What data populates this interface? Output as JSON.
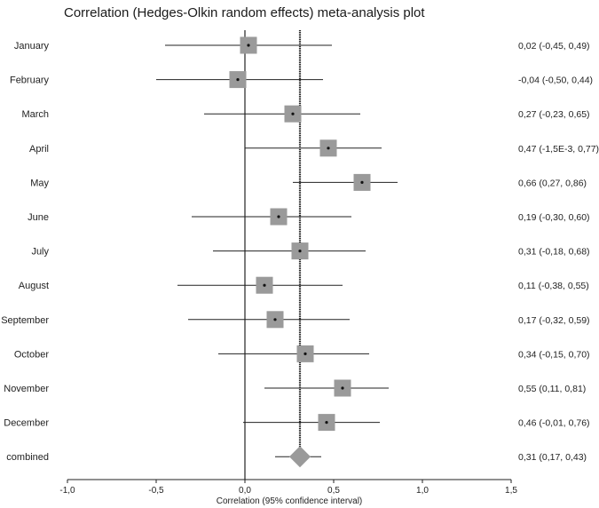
{
  "chart_data": {
    "type": "forest",
    "title": "Correlation (Hedges-Olkin random effects) meta-analysis plot",
    "xlabel": "Correlation (95% confidence interval)",
    "xlim": [
      -1.0,
      1.5
    ],
    "xticks": [
      -1.0,
      -0.5,
      0.0,
      0.5,
      1.0,
      1.5
    ],
    "xtick_labels": [
      "-1,0",
      "-0,5",
      "0,0",
      "0,5",
      "1,0",
      "1,5"
    ],
    "reference_line": 0.0,
    "pooled_line": 0.31,
    "studies": [
      {
        "label": "January",
        "estimate": 0.02,
        "lower": -0.45,
        "upper": 0.49,
        "ci_text": "0,02 (-0,45, 0,49)"
      },
      {
        "label": "February",
        "estimate": -0.04,
        "lower": -0.5,
        "upper": 0.44,
        "ci_text": "-0,04 (-0,50, 0,44)"
      },
      {
        "label": "March",
        "estimate": 0.27,
        "lower": -0.23,
        "upper": 0.65,
        "ci_text": "0,27 (-0,23, 0,65)"
      },
      {
        "label": "April",
        "estimate": 0.47,
        "lower": -0.0015,
        "upper": 0.77,
        "ci_text": "0,47 (-1,5E-3, 0,77)"
      },
      {
        "label": "May",
        "estimate": 0.66,
        "lower": 0.27,
        "upper": 0.86,
        "ci_text": "0,66 (0,27, 0,86)"
      },
      {
        "label": "June",
        "estimate": 0.19,
        "lower": -0.3,
        "upper": 0.6,
        "ci_text": "0,19 (-0,30, 0,60)"
      },
      {
        "label": "July",
        "estimate": 0.31,
        "lower": -0.18,
        "upper": 0.68,
        "ci_text": "0,31 (-0,18, 0,68)"
      },
      {
        "label": "August",
        "estimate": 0.11,
        "lower": -0.38,
        "upper": 0.55,
        "ci_text": "0,11 (-0,38, 0,55)"
      },
      {
        "label": "September",
        "estimate": 0.17,
        "lower": -0.32,
        "upper": 0.59,
        "ci_text": "0,17 (-0,32, 0,59)"
      },
      {
        "label": "October",
        "estimate": 0.34,
        "lower": -0.15,
        "upper": 0.7,
        "ci_text": "0,34 (-0,15, 0,70)"
      },
      {
        "label": "November",
        "estimate": 0.55,
        "lower": 0.11,
        "upper": 0.81,
        "ci_text": "0,55 (0,11, 0,81)"
      },
      {
        "label": "December",
        "estimate": 0.46,
        "lower": -0.01,
        "upper": 0.76,
        "ci_text": "0,46 (-0,01, 0,76)"
      }
    ],
    "combined": {
      "label": "combined",
      "estimate": 0.31,
      "lower": 0.17,
      "upper": 0.43,
      "ci_text": "0,31 (0,17, 0,43)"
    },
    "colors": {
      "box": "#9a9a9a",
      "diamond": "#9a9a9a",
      "line": "#222222",
      "dot": "#111111"
    }
  }
}
